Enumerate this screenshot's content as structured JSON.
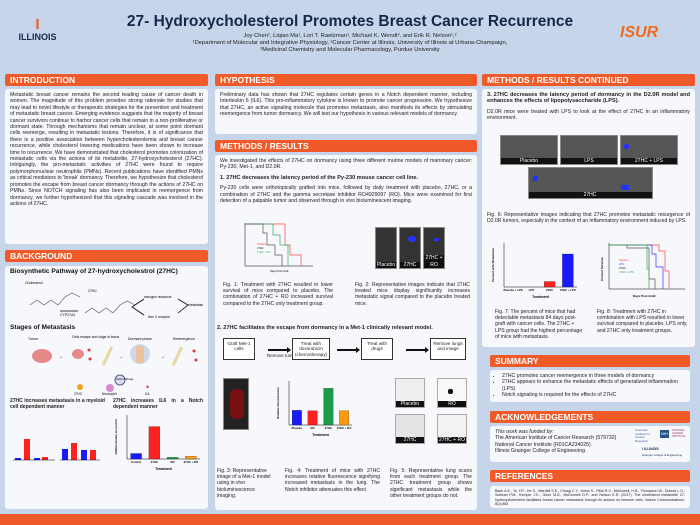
{
  "header": {
    "title": "27- Hydroxycholesterol Promotes Breast Cancer Recurrence",
    "authors": "Joy Chen¹, Liqian Ma¹, Lori T. Raetzman¹, Michael K. Wendt³, and Erik R. Nelson¹,²",
    "affil1": "¹Department of Molecular and Integrative Physiology, ²Cancer Center at Illinois, University of Illinois at Urbana-Champaign,",
    "affil2": "³Medicinal Chemistry and Molecular Pharmacology, Purdue University",
    "logo_left": "ILLINOIS",
    "logo_right": "ISUR"
  },
  "intro": {
    "title": "INTRODUCTION",
    "text": "Metastatic breast cancer remains the second leading cause of cancer death in women. The magnitude of this problem provides strong rationale for studies that may lead to novel lifestyle or therapeutic strategies for the prevention and treatment of metastatic breast cancer. Emerging evidence suggests that the majority of breast cancer survivors continue to harbor cancer cells that remain in a non-proliferative or dormant state. Through mechanisms that remain unclear, at some point dormant cells reemerge, resulting in metastatic lesions. Therefore, it is of significance that there is a positive association between hypercholesterolemia and breast cancer recurrence, while cholesterol lowering medications have been shown to increase time to recurrence. We have demonstrated that cholesterol promotes colonization of metastatic cells via the actions of its metabolite, 27-hydroxycholesterol (27HC). Intriguingly, the pro-metastatic activities of 27HC were found to require polymorphonuclear neutrophils (PMNs). Recent publications have identified PMNs as critical mediators to 'break' dormancy. Therefore, we hypothesize that cholesterol promotes the escape from breast cancer dormancy through the actions of 27HC on PMNs. Since NOTCH signaling has also been implicated in reemergence from dormancy, we further hypothesized that this signaling cascade was involved in the actions of 27HC."
  },
  "background": {
    "title": "BACKGROUND",
    "pathway_title": "Biosynthetic Pathway of 27-hydroxycholestrol (27HC)",
    "cholesterol": "Cholesterol",
    "enzyme": "CYP27A1",
    "product": "27HC",
    "er": "estrogen receptors",
    "lxr": "liver X receptor",
    "metastasis": "metastasis",
    "stages_title": "Stages of Metastasis",
    "stages": [
      "Tumor",
      "Cells escape and lodge in tissue",
      "Dormant phase",
      "Reemergence"
    ],
    "mech": [
      "27HC",
      "Neutrophil",
      "Notch Pathway",
      "IL6"
    ],
    "panel1_title": "27HC increases metastasis in a myeloid cell dependent manner",
    "panel2_title": "27HC increases IL6 in a Notch dependent manner"
  },
  "hypothesis": {
    "title": "HYPOTHESIS",
    "text": "Preliminary data has shown that 27HC regulates certain genes in a Notch dependent manner, including Interleukin 6 (IL6). This pro-inflammatory cytokine is known to promote cancer progression. We hypothesize that 27HC, an active signaling molecule that promotes metastasis, also manifests its effects by stimulating reemergence from tumor dormancy. We will test our hypothesis in various relevant models of dormancy."
  },
  "methods": {
    "title": "METHODS / RESULTS",
    "intro": "We investigated the effects of 27HC on dormancy using three different murine models of mammary cancer: Py-230, Met-1, and D2.0R.",
    "s1": "1.  27HC decreases the latency period of the Py-230 mouse cancer cell line.",
    "s1_text": "Py-230 cells were orthotopically  grafted into mice, followed by daily treatment with placebo, 27HC, or a combination of 27HC and the gamma secretase inhibitor RO4929097 (RO). Mice were examined for first detection of a palpable tumor and observed through in vivo bioluminescent imaging.",
    "fig1": "Fig. 1: Treatment with 27HC resulted in lower survival of mice compared to placebo. The combination of 27HC + RO increased survival compared to the 27HC only treatment group.",
    "fig1_legend": [
      "Placebo",
      "27HC",
      "27HC + RO"
    ],
    "fig1_xlabel": "Days Post Graft",
    "fig2_labels": [
      "Placebo",
      "27HC",
      "27HC + RO"
    ],
    "fig2": "Fig. 2: Representative images indicate that 27HC treated mice display significantly increases metastatic signal compared to the placebo treated mice.",
    "s2": "2. 27HC facilitates the escape from dormancy in a Met-1 clinically relevant model.",
    "flow": [
      "Graft Met-1 cells",
      "Treat with doxorubicin (chemotherapy)",
      "Treat with drugs",
      "Remove lungs and image"
    ],
    "flow_note": "Remove tumor",
    "fig3": "Fig. 3: Representative image of a Met-1 model using in vivo bioluminescence imaging.",
    "fig4": "Fig. 4: Treatment of mice with 27HC increases relative fluorescence signifying increased metastasis in the lung. The Notch inhibitor attenuates this effect.",
    "fig5_labels": [
      "Placebo",
      "RO",
      "27HC",
      "27HC + RO"
    ],
    "fig5": "Fig. 5: Representative lung scans from each treatment group. The 27HC treatment group shows significant metastasis while the other treatment groups do not."
  },
  "cont": {
    "title": "METHODS / RESULTS CONTINUED",
    "s3": "3. 27HC decreases the latency period of dormancy in the D2.0R model and enhances the effects of lipopolysaccharide (LPS).",
    "s3_text": "D2.0R mice were treated with LPS to look at the effect of 27HC in an inflammatory environment.",
    "fig6_labels": [
      "Placebo",
      "LPS",
      "27HC + LPS",
      "27HC"
    ],
    "fig6": "Fig. 6: Representative images indicating that 27HC promotes metastatic resurgence of D2.0R tumors, especially in the context of an inflammatory environment induced by LPS.",
    "fig7": "Fig. 7: The percent of mice that had detectable metastasis 84 days post-graft with cancer cells. The 27HC + LPS group had the highest percentage of mice with metastasis.",
    "fig8": "Fig. 8: Treatment with 27HC in combination with LPS resulted in lower survival compared to placebo, LPS only, and 27HC only treatment groups.",
    "fig8_legend": [
      "Placebo",
      "LPS",
      "27HC",
      "27HC + LPS"
    ],
    "fig8_xlabel": "Days Post Graft",
    "fig8_ylabel": "Percent Survival"
  },
  "summary": {
    "title": "SUMMARY",
    "items": [
      "27HC promotes cancer reemergence in three models of dormancy",
      "27HC appears to enhance the metastatic effects of generalized inflammation (LPS)",
      "Notch signaling is required for the effects of 27HC"
    ]
  },
  "ack": {
    "title": "ACKNOWLEDGEMENTS",
    "lead": "This work was funded by:",
    "lines": [
      "The American Institute of Cancer Research (579732)",
      "National Cancer Institute (R01CA234025)",
      "Illinois Grainger College of Engineering"
    ],
    "logo1": "American Institute for Cancer Research",
    "logo2": "NIH",
    "logo3": "NATIONAL CANCER INSTITUTE",
    "logo4": "I ILLINOIS",
    "logo4_sub": "Grainger College of Engineering"
  },
  "refs": {
    "title": "REFERENCES",
    "text": "Baek A.E., Yu Y.R., He S., Wardell S.E., Chang C.Y., Kwon S., Pillai R.V., McDowell, H.B., Thompson W., Dubois L.G., Sullivan P.M., Kemper J.K., Gunn M.D., McDonnell D.P., and Nelson E.R. (2017). The cholesterol metabolite 27-hydroxycholesterol facilitates breast cancer metastasis through its actions on immune cells. Nature Communications. 8(1):864"
  },
  "chart_data": [
    {
      "type": "bar",
      "title": "",
      "xlabel": "Treatment",
      "ylabel": "Relative Fluorescence",
      "categories": [
        "Placebo",
        "RO",
        "27HC",
        "27HC + RO"
      ],
      "values": [
        1.0,
        0.97,
        2.5,
        0.98
      ],
      "ylim": [
        0,
        3
      ],
      "colors": [
        "#1a1aff",
        "#ff2020",
        "#1a9a4a",
        "#ff9a10"
      ]
    },
    {
      "type": "bar",
      "title": "",
      "xlabel": "Treatment",
      "ylabel": "Percent with Metastasis",
      "categories": [
        "Placebo + LPS",
        "LPS",
        "27HC",
        "27HC + LPS"
      ],
      "values": [
        0,
        0,
        10,
        60
      ],
      "ylim": [
        0,
        80
      ],
      "colors": [
        "#888",
        "#888",
        "#ff2020",
        "#1a1aff"
      ]
    },
    {
      "type": "bar",
      "title": "",
      "xlabel": "Treatment",
      "ylabel": "mRNA relative to control",
      "categories": [
        "Control",
        "27HC",
        "RO",
        "27HC + RO"
      ],
      "values": [
        1.0,
        5.9,
        0.3,
        0.5
      ],
      "ylim": [
        0,
        8
      ],
      "colors": [
        "#1a1aff",
        "#ff2020",
        "#1a9a4a",
        "#ff9a10"
      ]
    }
  ]
}
